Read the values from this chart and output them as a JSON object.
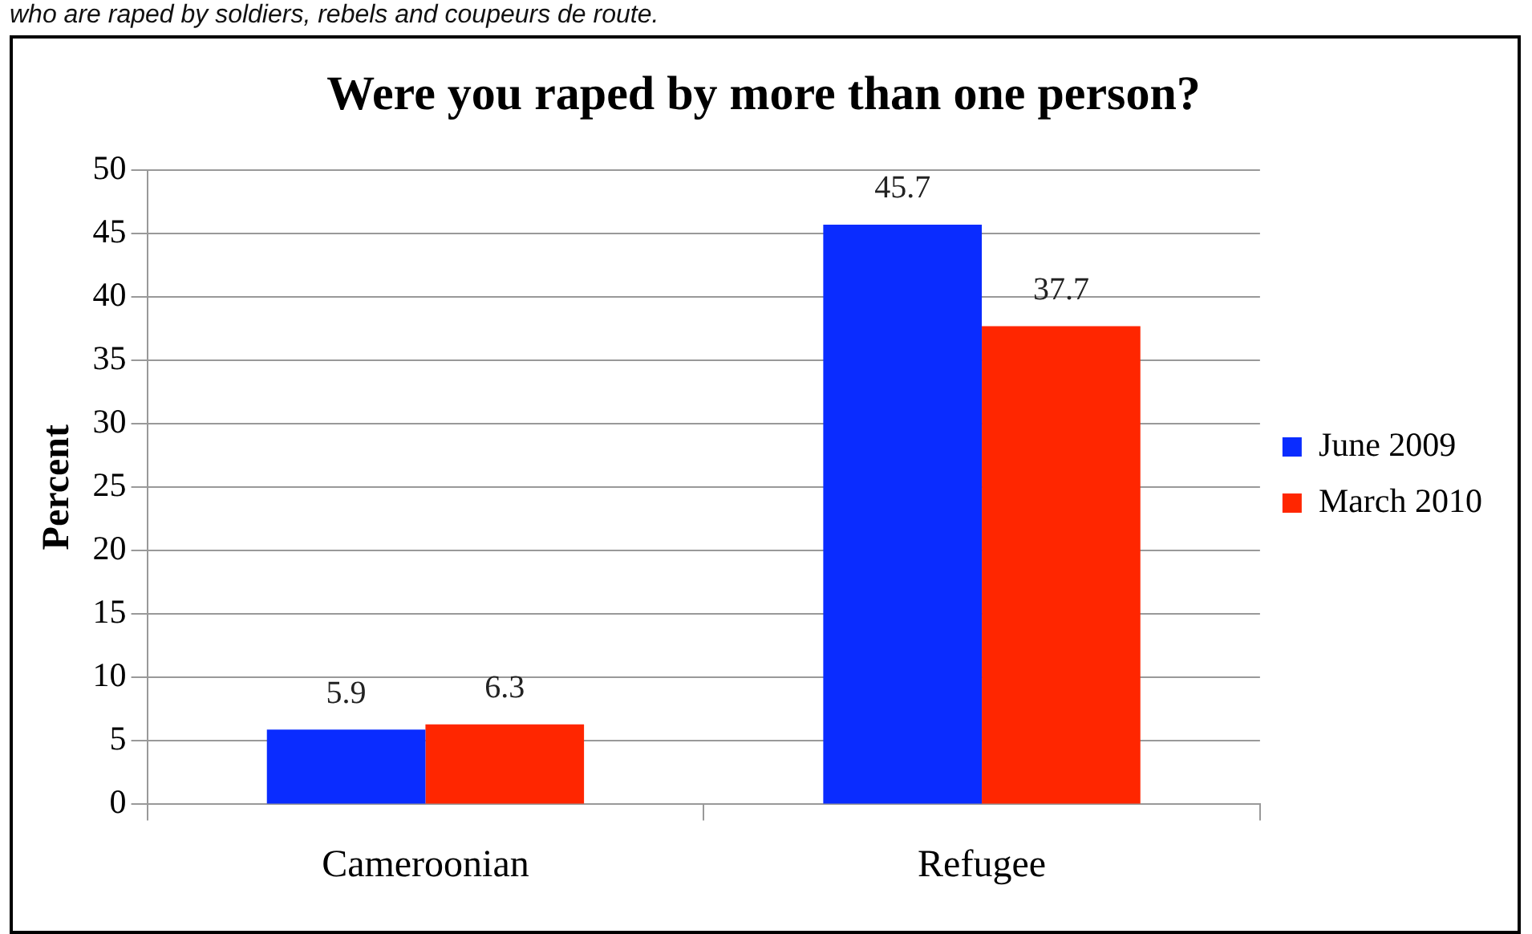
{
  "chart_data": {
    "type": "bar",
    "title": "Were you raped by more than one person?",
    "ylabel": "Percent",
    "annotations": [
      "who are raped by soldiers, rebels and coupeurs de route."
    ],
    "categories": [
      "Cameroonian",
      "Refugee"
    ],
    "series": [
      {
        "name": "June 2009",
        "color": "#0a2cff",
        "values": [
          5.9,
          45.7
        ]
      },
      {
        "name": "March 2010",
        "color": "#ff2600",
        "values": [
          6.3,
          37.7
        ]
      }
    ],
    "ylim": [
      0,
      50
    ],
    "yticks": [
      0,
      5,
      10,
      15,
      20,
      25,
      30,
      35,
      40,
      45,
      50
    ],
    "grid": "y",
    "legend": "right",
    "data_labels": true
  }
}
